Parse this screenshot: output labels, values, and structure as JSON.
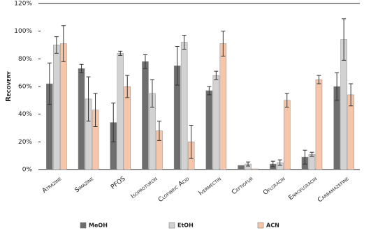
{
  "chart_data": {
    "type": "bar",
    "ylabel": "Recovery",
    "categories": [
      "Atrazine",
      "Simazine",
      "PFOS",
      "Isoproturon",
      "Clofibric Acid",
      "Ivermectin",
      "Ceftiofur",
      "Ofloxacin",
      "Enrofloxacin",
      "Carbamazepine"
    ],
    "series": [
      {
        "name": "MeOH",
        "color": "#6e6e6e",
        "values": [
          62,
          73,
          34,
          78,
          75,
          57,
          3,
          4,
          9,
          60
        ],
        "errors": [
          15,
          3,
          14,
          5,
          14,
          3,
          0,
          2,
          5,
          10
        ]
      },
      {
        "name": "EtOH",
        "color": "#d2d2d2",
        "values": [
          90,
          51,
          84,
          55,
          92,
          68,
          4,
          5,
          11,
          94
        ],
        "errors": [
          6,
          16,
          1.5,
          10,
          5,
          3,
          1.5,
          2,
          1.5,
          15
        ]
      },
      {
        "name": "ACN",
        "color": "#f6c6aa",
        "values": [
          91,
          43,
          60,
          28,
          20,
          91,
          0.5,
          50,
          65,
          54
        ],
        "errors": [
          13,
          12,
          8,
          7,
          12,
          9,
          0,
          5,
          3,
          8
        ]
      }
    ],
    "ylim": [
      0,
      120
    ],
    "yticks": [
      {
        "value": 0,
        "label": "0%"
      },
      {
        "value": 20,
        "label": "20%"
      },
      {
        "value": 40,
        "label": "40%"
      },
      {
        "value": 60,
        "label": "60%"
      },
      {
        "value": 80,
        "label": "80%"
      },
      {
        "value": 100,
        "label": "100%"
      },
      {
        "value": 120,
        "label": "120%"
      }
    ],
    "legend": "bottom"
  }
}
